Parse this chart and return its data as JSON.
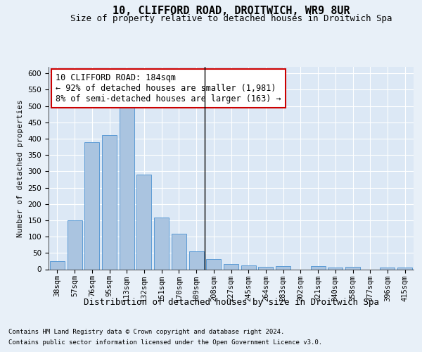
{
  "title": "10, CLIFFORD ROAD, DROITWICH, WR9 8UR",
  "subtitle": "Size of property relative to detached houses in Droitwich Spa",
  "xlabel": "Distribution of detached houses by size in Droitwich Spa",
  "ylabel": "Number of detached properties",
  "footer_line1": "Contains HM Land Registry data © Crown copyright and database right 2024.",
  "footer_line2": "Contains public sector information licensed under the Open Government Licence v3.0.",
  "categories": [
    "38sqm",
    "57sqm",
    "76sqm",
    "95sqm",
    "113sqm",
    "132sqm",
    "151sqm",
    "170sqm",
    "189sqm",
    "208sqm",
    "227sqm",
    "245sqm",
    "264sqm",
    "283sqm",
    "302sqm",
    "321sqm",
    "340sqm",
    "358sqm",
    "377sqm",
    "396sqm",
    "415sqm"
  ],
  "values": [
    25,
    150,
    390,
    410,
    500,
    290,
    158,
    108,
    55,
    31,
    17,
    12,
    8,
    10,
    0,
    10,
    5,
    7,
    0,
    6,
    5
  ],
  "bar_color": "#aac4e0",
  "bar_edge_color": "#5b9bd5",
  "vline_x": 8.5,
  "vline_color": "#000000",
  "annotation_text": "10 CLIFFORD ROAD: 184sqm\n← 92% of detached houses are smaller (1,981)\n8% of semi-detached houses are larger (163) →",
  "annotation_box_color": "#ffffff",
  "annotation_box_edge_color": "#cc0000",
  "ylim": [
    0,
    620
  ],
  "yticks": [
    0,
    50,
    100,
    150,
    200,
    250,
    300,
    350,
    400,
    450,
    500,
    550,
    600
  ],
  "bg_color": "#e8f0f8",
  "plot_bg_color": "#dce8f5",
  "grid_color": "#ffffff",
  "title_fontsize": 11,
  "subtitle_fontsize": 9,
  "xlabel_fontsize": 9,
  "ylabel_fontsize": 8,
  "tick_fontsize": 7.5,
  "annotation_fontsize": 8.5,
  "footer_fontsize": 6.5
}
